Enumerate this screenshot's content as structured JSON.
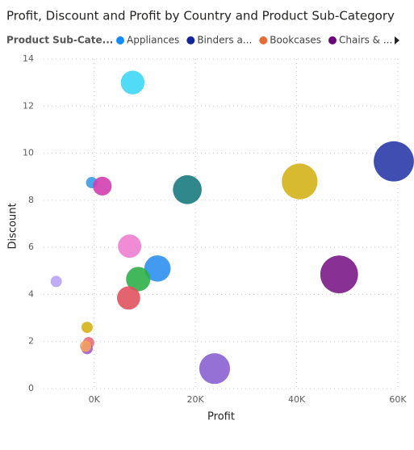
{
  "chart_data": {
    "type": "scatter",
    "title": "Profit, Discount and Profit by Country and Product Sub-Category",
    "legend": {
      "title": "Product Sub-Cate...",
      "items": [
        {
          "name": "Appliances",
          "color": "#118dff"
        },
        {
          "name": "Binders a...",
          "color": "#12239e"
        },
        {
          "name": "Bookcases",
          "color": "#e66c37"
        },
        {
          "name": "Chairs & ...",
          "color": "#6b007b"
        }
      ]
    },
    "x_label": "Profit",
    "y_label": "Discount",
    "x": [
      7600,
      59200,
      40600,
      18400,
      -500,
      1600,
      7000,
      12500,
      8700,
      48400,
      -7500,
      6800,
      -1400,
      -1100,
      -1400,
      -1700,
      23800
    ],
    "y": [
      13.0,
      9.65,
      8.8,
      8.45,
      8.75,
      8.6,
      6.05,
      5.1,
      4.65,
      4.85,
      4.55,
      3.85,
      2.6,
      1.95,
      1.7,
      1.8,
      0.85
    ],
    "colors": [
      "#3fd7f5",
      "#2b3ba8",
      "#d4b21b",
      "#1a7a7f",
      "#3a9bea",
      "#d23fb0",
      "#ee7fd0",
      "#2e8ff0",
      "#2eaf4a",
      "#7b1a88",
      "#b9a3f5",
      "#e0525f",
      "#d4b21b",
      "#e96c7a",
      "#a65cc9",
      "#f4a261",
      "#8a62d1"
    ],
    "xlim": [
      -10000,
      60000
    ],
    "xticks": [
      {
        "value": 0,
        "label": "0K"
      },
      {
        "value": 20000,
        "label": "20K"
      },
      {
        "value": 40000,
        "label": "40K"
      },
      {
        "value": 60000,
        "label": "60K"
      }
    ],
    "ylim": [
      0,
      14
    ],
    "yticks": [
      0,
      2,
      4,
      6,
      8,
      10,
      12,
      14
    ],
    "grid": true
  }
}
